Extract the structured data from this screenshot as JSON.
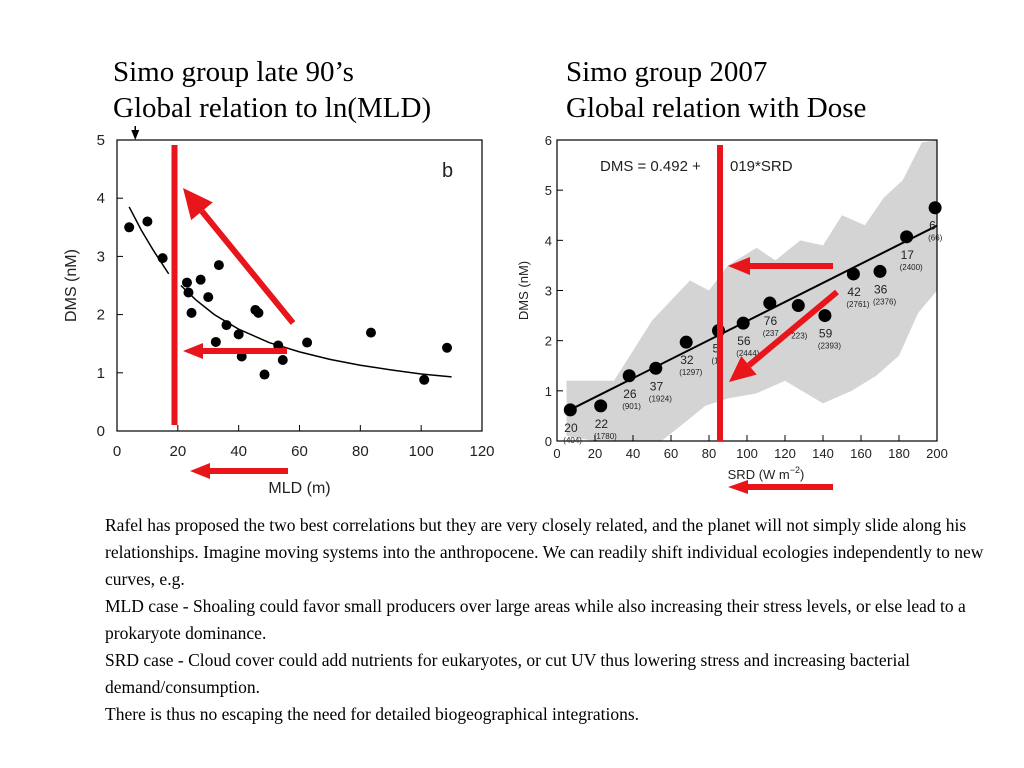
{
  "headings": {
    "left": {
      "line1": "Simo group late 90’s",
      "line2": "Global relation to ln(MLD)"
    },
    "right": {
      "line1": "Simo group 2007",
      "line2": "Global relation with Dose"
    }
  },
  "annotation_color": "#e8161b",
  "chart_data": [
    {
      "type": "scatter",
      "panel_label": "b",
      "xlabel": "MLD (m)",
      "ylabel": "DMS (nM)",
      "xlim": [
        0,
        120
      ],
      "ylim": [
        0,
        5
      ],
      "x_ticks": [
        0,
        20,
        40,
        60,
        80,
        100,
        120
      ],
      "y_ticks": [
        0,
        1,
        2,
        3,
        4,
        5
      ],
      "grid": false,
      "points": [
        {
          "x": 4,
          "y": 3.5
        },
        {
          "x": 10,
          "y": 3.6
        },
        {
          "x": 15,
          "y": 2.97
        },
        {
          "x": 23,
          "y": 2.55
        },
        {
          "x": 23.5,
          "y": 2.38
        },
        {
          "x": 24.5,
          "y": 2.03
        },
        {
          "x": 27.5,
          "y": 2.6
        },
        {
          "x": 30,
          "y": 2.3
        },
        {
          "x": 33.5,
          "y": 2.85
        },
        {
          "x": 32.5,
          "y": 1.53
        },
        {
          "x": 36,
          "y": 1.82
        },
        {
          "x": 40,
          "y": 1.66
        },
        {
          "x": 41,
          "y": 1.28
        },
        {
          "x": 45.5,
          "y": 2.08
        },
        {
          "x": 46.5,
          "y": 2.03
        },
        {
          "x": 48.5,
          "y": 0.97
        },
        {
          "x": 53,
          "y": 1.47
        },
        {
          "x": 54.5,
          "y": 1.22
        },
        {
          "x": 62.5,
          "y": 1.52
        },
        {
          "x": 83.5,
          "y": 1.69
        },
        {
          "x": 101,
          "y": 0.88
        },
        {
          "x": 108.5,
          "y": 1.43
        }
      ],
      "fit_segments": [
        [
          {
            "x": 4,
            "y": 3.85
          },
          {
            "x": 8,
            "y": 3.45
          },
          {
            "x": 12,
            "y": 3.1
          },
          {
            "x": 17,
            "y": 2.7
          }
        ],
        [
          {
            "x": 21,
            "y": 2.5
          },
          {
            "x": 26,
            "y": 2.25
          },
          {
            "x": 32,
            "y": 2.0
          },
          {
            "x": 40,
            "y": 1.75
          },
          {
            "x": 50,
            "y": 1.52
          },
          {
            "x": 60,
            "y": 1.36
          },
          {
            "x": 70,
            "y": 1.23
          },
          {
            "x": 80,
            "y": 1.13
          },
          {
            "x": 90,
            "y": 1.05
          },
          {
            "x": 100,
            "y": 0.98
          },
          {
            "x": 110,
            "y": 0.93
          }
        ]
      ],
      "top_marker_x": 6
    },
    {
      "type": "scatter",
      "equation_left": "DMS = 0.492 + ",
      "equation_right": "019*SRD",
      "xlabel": "SRD (W m",
      "xlabel_superscript": "−2",
      "xlabel_close": ")",
      "ylabel": "DMS (nM)",
      "xlim": [
        0,
        200
      ],
      "ylim": [
        0,
        6
      ],
      "x_ticks": [
        0,
        20,
        40,
        60,
        80,
        100,
        120,
        140,
        160,
        180,
        200
      ],
      "x_tick_labels": [
        "0",
        "20",
        "40",
        "60",
        "80",
        "100",
        "120",
        "140",
        "160",
        "180",
        "200"
      ],
      "y_ticks": [
        0,
        1,
        2,
        3,
        4,
        5,
        6
      ],
      "grid": false,
      "fit_line": {
        "intercept": 0.492,
        "slope": 0.019
      },
      "band_color": "#d4d4d4",
      "band_upper": [
        {
          "x": 5,
          "y": 1.2
        },
        {
          "x": 30,
          "y": 1.2
        },
        {
          "x": 50,
          "y": 2.4
        },
        {
          "x": 60,
          "y": 2.8
        },
        {
          "x": 70,
          "y": 3.2
        },
        {
          "x": 80,
          "y": 3.0
        },
        {
          "x": 90,
          "y": 3.5
        },
        {
          "x": 105,
          "y": 3.85
        },
        {
          "x": 115,
          "y": 3.6
        },
        {
          "x": 128,
          "y": 4.0
        },
        {
          "x": 140,
          "y": 3.9
        },
        {
          "x": 150,
          "y": 4.5
        },
        {
          "x": 162,
          "y": 4.3
        },
        {
          "x": 172,
          "y": 4.85
        },
        {
          "x": 182,
          "y": 5.2
        },
        {
          "x": 192,
          "y": 5.95
        },
        {
          "x": 200,
          "y": 6.0
        }
      ],
      "band_lower": [
        {
          "x": 200,
          "y": 3.0
        },
        {
          "x": 190,
          "y": 2.55
        },
        {
          "x": 180,
          "y": 1.7
        },
        {
          "x": 168,
          "y": 1.3
        },
        {
          "x": 155,
          "y": 1.0
        },
        {
          "x": 140,
          "y": 0.75
        },
        {
          "x": 120,
          "y": 1.2
        },
        {
          "x": 105,
          "y": 0.95
        },
        {
          "x": 90,
          "y": 0.85
        },
        {
          "x": 78,
          "y": 0.7
        },
        {
          "x": 65,
          "y": 0.3
        },
        {
          "x": 55,
          "y": 0.0
        },
        {
          "x": 35,
          "y": 0.0
        },
        {
          "x": 20,
          "y": 0.0
        },
        {
          "x": 5,
          "y": 0.1
        }
      ],
      "points": [
        {
          "x": 7,
          "y": 0.62,
          "n": "20",
          "m": "(404)"
        },
        {
          "x": 23,
          "y": 0.7,
          "n": "22",
          "m": "(1780)"
        },
        {
          "x": 38,
          "y": 1.3,
          "n": "26",
          "m": "(901)"
        },
        {
          "x": 52,
          "y": 1.45,
          "n": "37",
          "m": "(1924)"
        },
        {
          "x": 68,
          "y": 1.97,
          "n": "32",
          "m": "(1297)"
        },
        {
          "x": 85,
          "y": 2.2,
          "n": "5",
          "m": "(1"
        },
        {
          "x": 98,
          "y": 2.35,
          "n": "56",
          "m": "(2444)"
        },
        {
          "x": 112,
          "y": 2.75,
          "n": "76",
          "m": "(237"
        },
        {
          "x": 127,
          "y": 2.7,
          "n": "",
          "m": "223)"
        },
        {
          "x": 141,
          "y": 2.5,
          "n": "59",
          "m": "(2393)"
        },
        {
          "x": 156,
          "y": 3.33,
          "n": "42",
          "m": "(2761)"
        },
        {
          "x": 170,
          "y": 3.38,
          "n": "36",
          "m": "(2376)"
        },
        {
          "x": 184,
          "y": 4.07,
          "n": "17",
          "m": "(2400)"
        },
        {
          "x": 199,
          "y": 4.65,
          "n": "6",
          "m": "(66)"
        }
      ]
    }
  ],
  "body": {
    "p1": "Rafel has proposed the two best correlations but they are very closely related, and the planet will not simply slide along his relationships. Imagine moving systems into the anthropocene. We can readily shift individual ecologies independently to new curves, e.g.",
    "p2": "MLD case - Shoaling could favor small producers over large areas while also increasing their stress levels, or else lead to a prokaryote dominance.",
    "p3": "SRD case - Cloud cover could add nutrients for eukaryotes, or cut UV thus lowering stress and increasing bacterial demand/consumption.",
    "p4": "There is thus no escaping the need for detailed biogeographical integrations."
  }
}
